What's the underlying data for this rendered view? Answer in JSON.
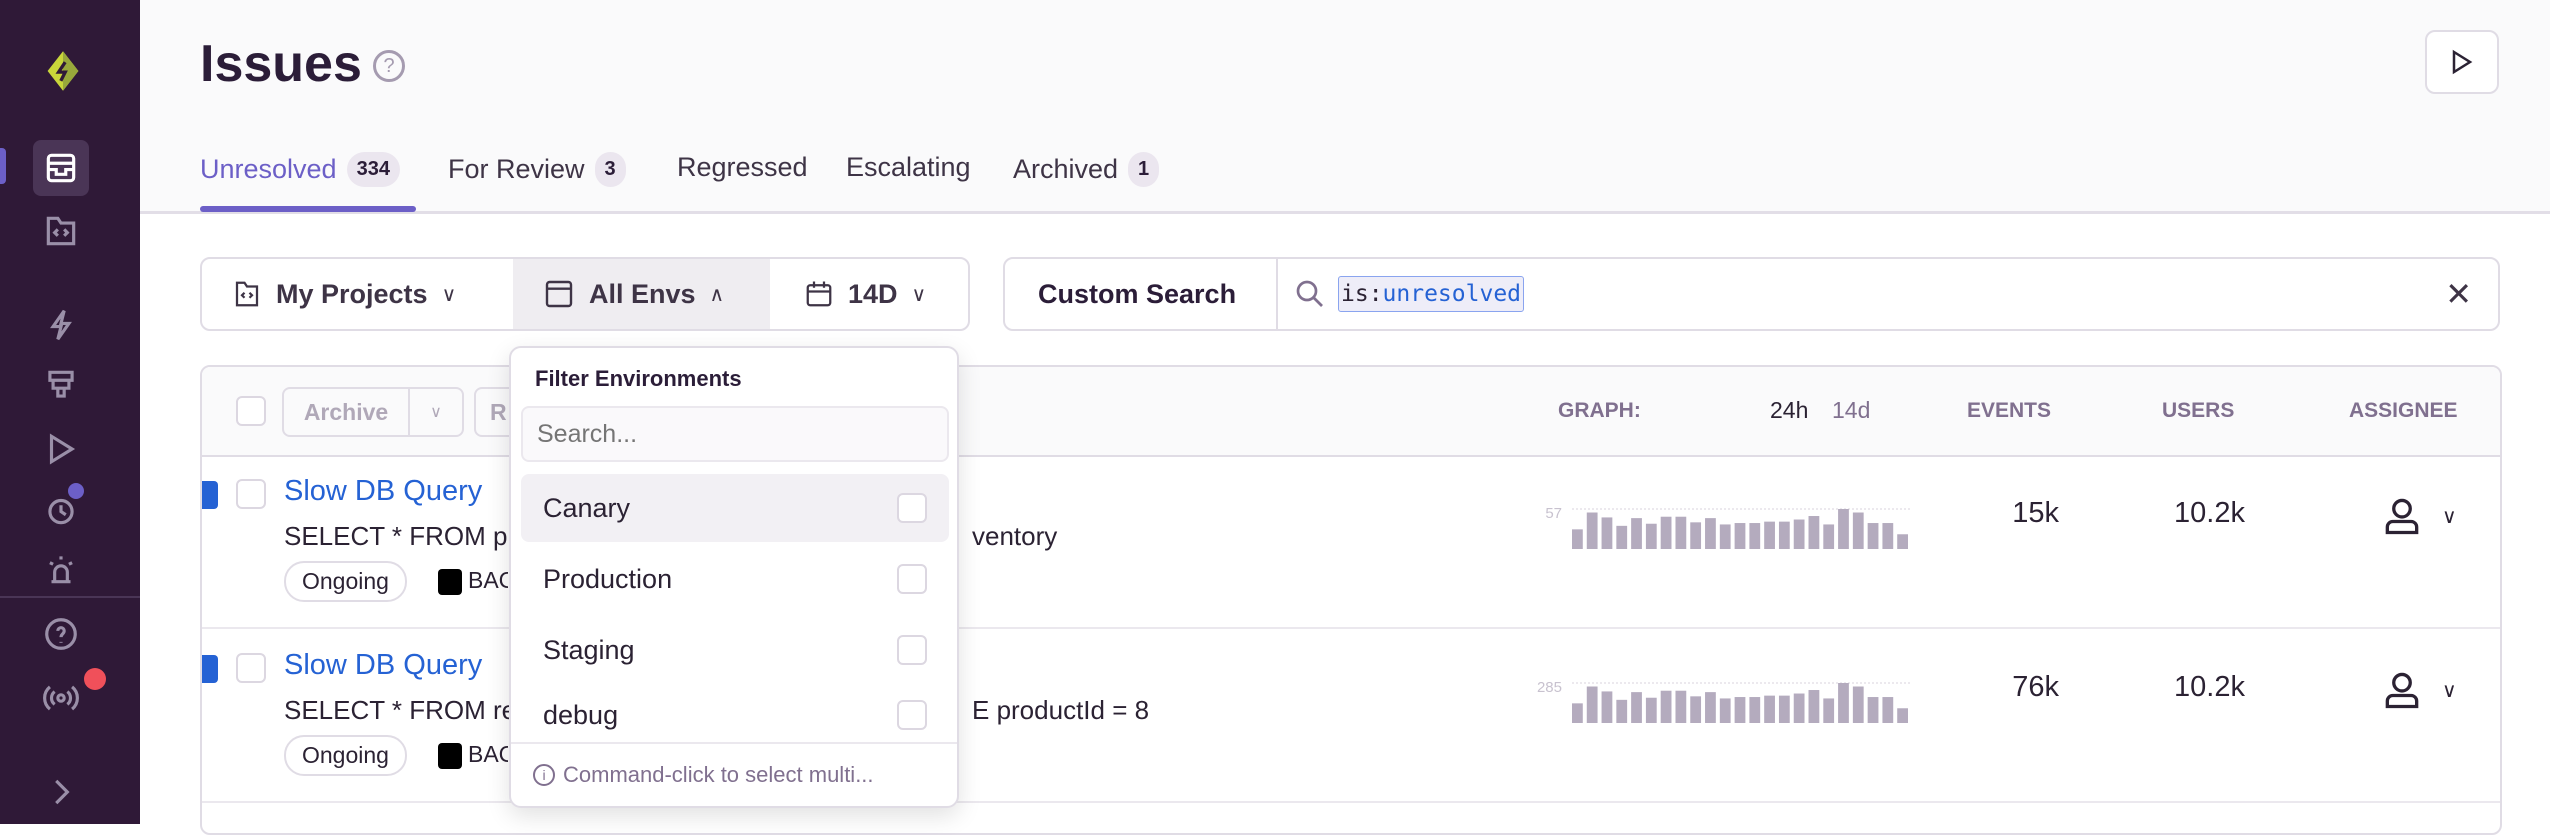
{
  "page": {
    "title": "Issues"
  },
  "tabs": [
    {
      "label": "Unresolved",
      "count": "334"
    },
    {
      "label": "For Review",
      "count": "3"
    },
    {
      "label": "Regressed"
    },
    {
      "label": "Escalating"
    },
    {
      "label": "Archived",
      "count": "1"
    }
  ],
  "filters": {
    "projects": "My Projects",
    "envs": "All Envs",
    "period": "14D"
  },
  "search": {
    "label": "Custom Search",
    "key": "is:",
    "value": "unresolved"
  },
  "table": {
    "archive": "Archive",
    "resolve_partial": "R",
    "graph_label": "GRAPH:",
    "graph_24h": "24h",
    "graph_14d": "14d",
    "events": "EVENTS",
    "users": "USERS",
    "assignee": "ASSIGNEE"
  },
  "issues": [
    {
      "title": "Slow DB Query",
      "sub_left": "SELECT * FROM p",
      "sub_right": "ventory",
      "status": "Ongoing",
      "project": "BAC",
      "graph_max": "57",
      "events": "15k",
      "users": "10.2k",
      "bars": [
        28,
        52,
        45,
        33,
        44,
        36,
        46,
        46,
        38,
        44,
        35,
        37,
        37,
        39,
        39,
        42,
        47,
        35,
        57,
        52,
        37,
        37,
        21
      ]
    },
    {
      "title": "Slow DB Query",
      "sub_left": "SELECT * FROM re",
      "sub_right": "E productId = 8",
      "status": "Ongoing",
      "project": "BAC",
      "graph_max": "285",
      "events": "76k",
      "users": "10.2k",
      "bars": [
        140,
        260,
        225,
        165,
        220,
        180,
        230,
        230,
        190,
        220,
        175,
        185,
        185,
        195,
        195,
        210,
        235,
        175,
        285,
        260,
        185,
        185,
        105
      ]
    }
  ],
  "dropdown": {
    "title": "Filter Environments",
    "placeholder": "Search...",
    "items": [
      "Canary",
      "Production",
      "Staging",
      "debug"
    ],
    "footer": "Command-click to select multi..."
  },
  "colors": {
    "sidebar": "#2f1937",
    "accent": "#6c5fc7",
    "link": "#2562d4",
    "bar": "#b4abbe",
    "notify_red": "#f0505a",
    "notify_purple": "#6c5fc7"
  }
}
